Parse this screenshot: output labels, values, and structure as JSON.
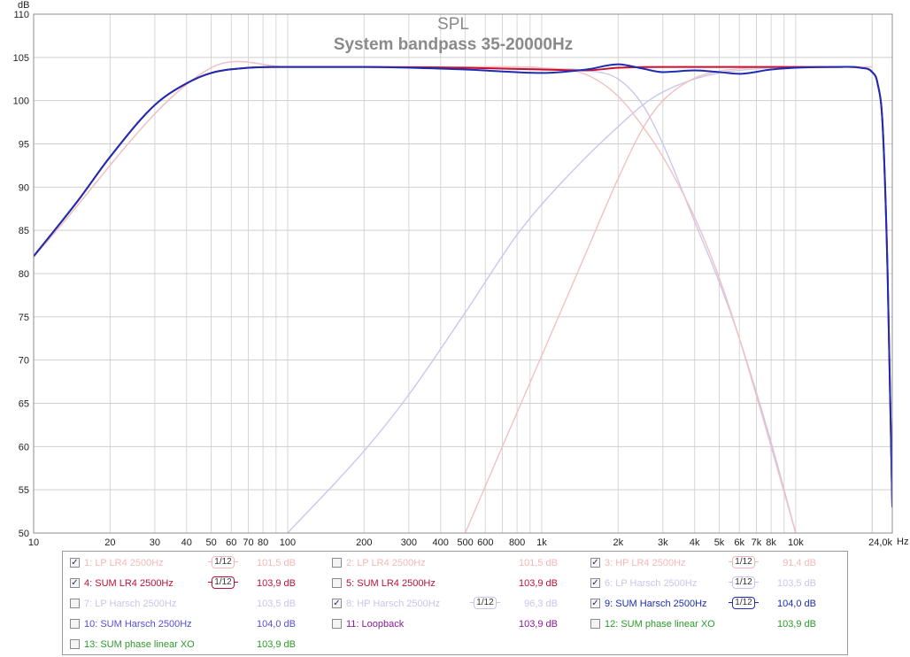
{
  "chart_data": {
    "type": "line",
    "title": "SPL",
    "subtitle": "System bandpass 35-20000Hz",
    "ylabel": "dB",
    "xlabel": "Hz",
    "x_scale": "log",
    "xlim": [
      10,
      24000
    ],
    "ylim": [
      50,
      110
    ],
    "grid": true,
    "y_ticks": [
      "50",
      "55",
      "60",
      "65",
      "70",
      "75",
      "80",
      "85",
      "90",
      "95",
      "100",
      "105",
      "110"
    ],
    "x_ticks": [
      {
        "v": 10,
        "l": "10"
      },
      {
        "v": 20,
        "l": "20"
      },
      {
        "v": 30,
        "l": "30"
      },
      {
        "v": 40,
        "l": "40"
      },
      {
        "v": 50,
        "l": "50"
      },
      {
        "v": 60,
        "l": "60"
      },
      {
        "v": 70,
        "l": "70"
      },
      {
        "v": 80,
        "l": "80"
      },
      {
        "v": 100,
        "l": "100"
      },
      {
        "v": 200,
        "l": "200"
      },
      {
        "v": 300,
        "l": "300"
      },
      {
        "v": 400,
        "l": "400"
      },
      {
        "v": 500,
        "l": "500"
      },
      {
        "v": 600,
        "l": "600"
      },
      {
        "v": 800,
        "l": "800"
      },
      {
        "v": 1000,
        "l": "1k"
      },
      {
        "v": 2000,
        "l": "2k"
      },
      {
        "v": 3000,
        "l": "3k"
      },
      {
        "v": 4000,
        "l": "4k"
      },
      {
        "v": 5000,
        "l": "5k"
      },
      {
        "v": 6000,
        "l": "6k"
      },
      {
        "v": 7000,
        "l": "7k"
      },
      {
        "v": 8000,
        "l": "8k"
      },
      {
        "v": 10000,
        "l": "10k"
      },
      {
        "v": 24000,
        "l": "24,0k"
      }
    ],
    "series": [
      {
        "name": "LP Harsch 2500Hz",
        "color": "#c8c8ec",
        "width": 1.4,
        "x": [
          10,
          50,
          100,
          200,
          500,
          1000,
          1500,
          2000,
          2500,
          3000,
          4000,
          5000,
          6000,
          8000,
          10000
        ],
        "y": [
          82,
          103.8,
          103.9,
          103.9,
          103.8,
          103.7,
          103.5,
          102.5,
          99.5,
          95,
          86,
          79,
          72.5,
          60.5,
          50
        ]
      },
      {
        "name": "HP Harsch 2500Hz",
        "color": "#c8c8ec",
        "width": 1.4,
        "x": [
          100,
          200,
          300,
          500,
          800,
          1000,
          1500,
          2000,
          2500,
          3000,
          4000,
          5000,
          6000,
          8000,
          10000,
          20000
        ],
        "y": [
          50,
          59.5,
          66,
          75.5,
          84.5,
          88,
          93.5,
          97,
          99.5,
          101,
          102.5,
          103.2,
          103.5,
          103.8,
          103.9,
          103.9
        ]
      },
      {
        "name": "LP LR4 2500Hz",
        "color": "#f2c0c0",
        "width": 1.4,
        "x": [
          10,
          50,
          100,
          500,
          1000,
          1500,
          2000,
          2500,
          3000,
          4000,
          5000,
          6000,
          8000,
          10000
        ],
        "y": [
          82,
          103.8,
          103.9,
          103.9,
          103.8,
          103,
          100.5,
          97,
          93.5,
          86.5,
          79.5,
          72.5,
          60,
          50
        ]
      },
      {
        "name": "HP LR4 2500Hz",
        "color": "#f2c0c0",
        "width": 1.4,
        "x": [
          500,
          700,
          1000,
          1500,
          2000,
          2500,
          3000,
          4000,
          5000,
          6000,
          8000,
          10000,
          20000
        ],
        "y": [
          50,
          60,
          70.5,
          82.5,
          91,
          96.8,
          100,
          102.6,
          103.4,
          103.7,
          103.9,
          103.9,
          103.9
        ]
      },
      {
        "name": "SUM LR4 2500Hz",
        "color": "#c8102e",
        "width": 2,
        "x": [
          10,
          15,
          20,
          30,
          40,
          50,
          70,
          100,
          200,
          500,
          1000,
          1500,
          2000,
          3000,
          5000,
          10000,
          15000,
          18000,
          20000,
          21000,
          22000,
          23000,
          24000
        ],
        "y": [
          82,
          88.5,
          93.5,
          99.5,
          102,
          103.2,
          103.8,
          103.9,
          103.9,
          103.8,
          103.6,
          103.5,
          103.8,
          103.9,
          103.9,
          103.9,
          103.9,
          103.8,
          103.3,
          102,
          97,
          80,
          53
        ]
      },
      {
        "name": "SUM Harsch 2500Hz",
        "color": "#1c2db4",
        "width": 2,
        "x": [
          10,
          15,
          20,
          30,
          40,
          50,
          70,
          100,
          200,
          500,
          1000,
          1500,
          2000,
          2500,
          3000,
          4000,
          5000,
          6000,
          8000,
          10000,
          15000,
          18000,
          20000,
          21000,
          22000,
          23000,
          24000
        ],
        "y": [
          82,
          88.5,
          93.5,
          99.5,
          102,
          103.2,
          103.8,
          103.9,
          103.9,
          103.6,
          103.2,
          103.6,
          104.2,
          103.7,
          103.3,
          103.5,
          103.3,
          103.1,
          103.6,
          103.8,
          103.9,
          103.8,
          103.3,
          102,
          97,
          80,
          53
        ]
      }
    ],
    "legend": [
      {
        "num": "1:",
        "name": "LP LR4 2500Hz",
        "checked": true,
        "smoothing": true,
        "value": "101,5 dB",
        "color": "#f2b8b8"
      },
      {
        "num": "2:",
        "name": "LP LR4 2500Hz",
        "checked": false,
        "smoothing": false,
        "value": "101,5 dB",
        "color": "#f2b8b8"
      },
      {
        "num": "3:",
        "name": "HP LR4 2500Hz",
        "checked": true,
        "smoothing": true,
        "value": "91,4 dB",
        "color": "#f2b8b8"
      },
      {
        "num": "4:",
        "name": "SUM LR4 2500Hz",
        "checked": true,
        "smoothing": true,
        "value": "103,9 dB",
        "color": "#b5123a"
      },
      {
        "num": "5:",
        "name": "SUM LR4 2500Hz",
        "checked": false,
        "smoothing": false,
        "value": "103,9 dB",
        "color": "#b5123a"
      },
      {
        "num": "6:",
        "name": "LP Harsch 2500Hz",
        "checked": true,
        "smoothing": true,
        "value": "103,5 dB",
        "color": "#c6c6ec"
      },
      {
        "num": "7:",
        "name": "LP Harsch 2500Hz",
        "checked": false,
        "smoothing": false,
        "value": "103,5 dB",
        "color": "#c6c6ec"
      },
      {
        "num": "8:",
        "name": "HP Harsch 2500Hz",
        "checked": true,
        "smoothing": true,
        "value": "96,3 dB",
        "color": "#c6c6ec"
      },
      {
        "num": "9:",
        "name": "SUM Harsch 2500Hz",
        "checked": true,
        "smoothing": true,
        "value": "104,0 dB",
        "color": "#1c2db4"
      },
      {
        "num": "10:",
        "name": "SUM Harsch 2500Hz",
        "checked": false,
        "smoothing": false,
        "value": "104,0 dB",
        "color": "#5050d8"
      },
      {
        "num": "11:",
        "name": "Loopback",
        "checked": false,
        "smoothing": false,
        "value": "103,9 dB",
        "color": "#8a1a9a"
      },
      {
        "num": "12:",
        "name": "SUM phase linear XO",
        "checked": false,
        "smoothing": false,
        "value": "103,9 dB",
        "color": "#2a9a2a"
      },
      {
        "num": "13:",
        "name": "SUM phase linear XO",
        "checked": false,
        "smoothing": false,
        "value": "103,9 dB",
        "color": "#2a9a2a"
      }
    ],
    "smoothing_label": "1/12"
  }
}
